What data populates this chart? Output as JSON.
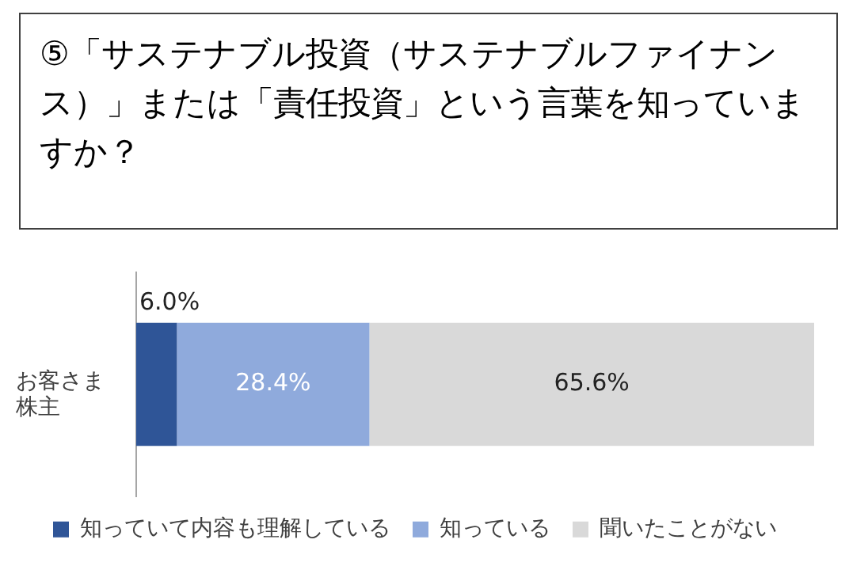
{
  "chart_data": {
    "type": "bar",
    "title": "⑤「サステナブル投資（サステナブルファイナンス）」または「責任投資」という言葉を知っていますか？",
    "orientation": "horizontal",
    "stacked": true,
    "categories": [
      "お客さま株主"
    ],
    "xlim": [
      0,
      100
    ],
    "tick_labels": "y",
    "grid": false,
    "legend": "bottom",
    "series": [
      {
        "name": "知っていて内容も理解している",
        "color": "#2f5597",
        "values": [
          6.0
        ],
        "value_labels": [
          "6.0%"
        ]
      },
      {
        "name": "知っている",
        "color": "#8faadc",
        "values": [
          28.4
        ],
        "value_labels": [
          "28.4%"
        ]
      },
      {
        "name": "聞いたことがない",
        "color": "#d9d9d9",
        "values": [
          65.6
        ],
        "value_labels": [
          "65.6%"
        ]
      }
    ]
  }
}
